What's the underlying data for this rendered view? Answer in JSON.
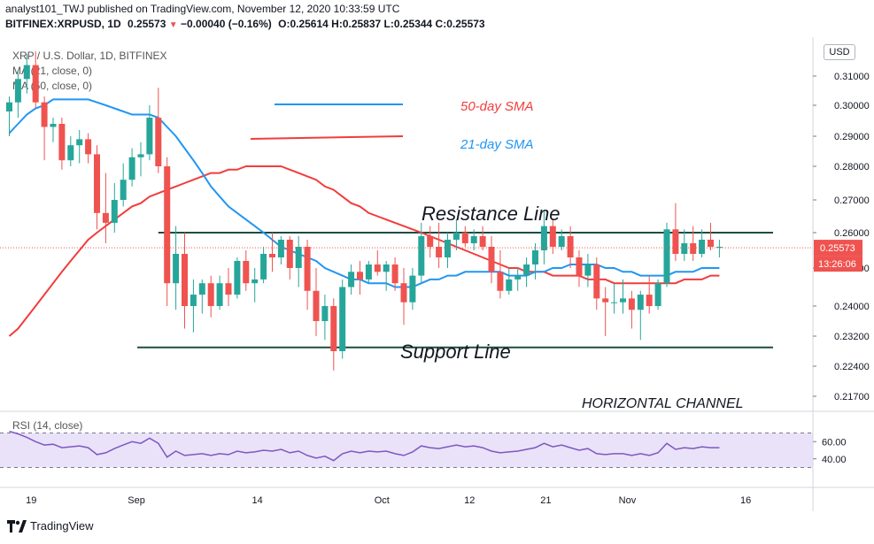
{
  "header": {
    "line1": "analyst101_TWJ published on TradingView.com, November 12, 2020 10:33:59 UTC",
    "symbol": "BITFINEX:XRPUSD, 1D",
    "price": "0.25573",
    "change": "−0.00040 (−0.16%)",
    "ohlc": "O:0.25614 H:0.25837 L:0.25344 C:0.25573"
  },
  "legend": {
    "title": "XRP / U.S. Dollar, 1D, BITFINEX",
    "ma21": "MA (21, close, 0)",
    "ma50": "MA (50, close, 0)"
  },
  "footer": {
    "brand": "TradingView"
  },
  "chart_data": [
    {
      "type": "candlestick",
      "title": "XRP / U.S. Dollar, 1D, BITFINEX",
      "currency_label": "USD",
      "y_tick_labels": [
        "0.31000",
        "0.30000",
        "0.29000",
        "0.28000",
        "0.27000",
        "0.26000",
        "0.25000",
        "0.24000",
        "0.23200",
        "0.22400",
        "0.21700"
      ],
      "x_tick_labels": [
        "19",
        "Sep",
        "14",
        "Oct",
        "12",
        "21",
        "Nov",
        "16"
      ],
      "last_price_label": "0.25573",
      "countdown_label": "13:26:06",
      "candles": [
        {
          "o": 0.298,
          "h": 0.303,
          "l": 0.29,
          "c": 0.301
        },
        {
          "o": 0.301,
          "h": 0.312,
          "l": 0.296,
          "c": 0.309
        },
        {
          "o": 0.309,
          "h": 0.318,
          "l": 0.304,
          "c": 0.314
        },
        {
          "o": 0.314,
          "h": 0.319,
          "l": 0.299,
          "c": 0.301
        },
        {
          "o": 0.301,
          "h": 0.303,
          "l": 0.282,
          "c": 0.293
        },
        {
          "o": 0.293,
          "h": 0.296,
          "l": 0.288,
          "c": 0.294
        },
        {
          "o": 0.294,
          "h": 0.296,
          "l": 0.279,
          "c": 0.282
        },
        {
          "o": 0.282,
          "h": 0.29,
          "l": 0.28,
          "c": 0.287
        },
        {
          "o": 0.287,
          "h": 0.292,
          "l": 0.281,
          "c": 0.289
        },
        {
          "o": 0.289,
          "h": 0.291,
          "l": 0.281,
          "c": 0.284
        },
        {
          "o": 0.284,
          "h": 0.287,
          "l": 0.261,
          "c": 0.266
        },
        {
          "o": 0.266,
          "h": 0.278,
          "l": 0.257,
          "c": 0.263
        },
        {
          "o": 0.263,
          "h": 0.275,
          "l": 0.26,
          "c": 0.27
        },
        {
          "o": 0.27,
          "h": 0.281,
          "l": 0.268,
          "c": 0.276
        },
        {
          "o": 0.276,
          "h": 0.286,
          "l": 0.274,
          "c": 0.283
        },
        {
          "o": 0.283,
          "h": 0.288,
          "l": 0.277,
          "c": 0.284
        },
        {
          "o": 0.284,
          "h": 0.3,
          "l": 0.282,
          "c": 0.296
        },
        {
          "o": 0.296,
          "h": 0.306,
          "l": 0.278,
          "c": 0.28
        },
        {
          "o": 0.28,
          "h": 0.283,
          "l": 0.24,
          "c": 0.246
        },
        {
          "o": 0.246,
          "h": 0.262,
          "l": 0.239,
          "c": 0.254
        },
        {
          "o": 0.254,
          "h": 0.26,
          "l": 0.234,
          "c": 0.24
        },
        {
          "o": 0.24,
          "h": 0.247,
          "l": 0.233,
          "c": 0.243
        },
        {
          "o": 0.243,
          "h": 0.247,
          "l": 0.238,
          "c": 0.246
        },
        {
          "o": 0.246,
          "h": 0.248,
          "l": 0.237,
          "c": 0.24
        },
        {
          "o": 0.24,
          "h": 0.248,
          "l": 0.239,
          "c": 0.246
        },
        {
          "o": 0.246,
          "h": 0.25,
          "l": 0.24,
          "c": 0.243
        },
        {
          "o": 0.243,
          "h": 0.253,
          "l": 0.242,
          "c": 0.252
        },
        {
          "o": 0.252,
          "h": 0.255,
          "l": 0.244,
          "c": 0.246
        },
        {
          "o": 0.246,
          "h": 0.25,
          "l": 0.241,
          "c": 0.247
        },
        {
          "o": 0.247,
          "h": 0.256,
          "l": 0.246,
          "c": 0.254
        },
        {
          "o": 0.254,
          "h": 0.26,
          "l": 0.249,
          "c": 0.253
        },
        {
          "o": 0.253,
          "h": 0.259,
          "l": 0.251,
          "c": 0.258
        },
        {
          "o": 0.258,
          "h": 0.259,
          "l": 0.247,
          "c": 0.25
        },
        {
          "o": 0.25,
          "h": 0.259,
          "l": 0.245,
          "c": 0.256
        },
        {
          "o": 0.256,
          "h": 0.258,
          "l": 0.239,
          "c": 0.244
        },
        {
          "o": 0.244,
          "h": 0.25,
          "l": 0.232,
          "c": 0.236
        },
        {
          "o": 0.236,
          "h": 0.243,
          "l": 0.231,
          "c": 0.24
        },
        {
          "o": 0.24,
          "h": 0.242,
          "l": 0.223,
          "c": 0.228
        },
        {
          "o": 0.228,
          "h": 0.247,
          "l": 0.226,
          "c": 0.245
        },
        {
          "o": 0.245,
          "h": 0.251,
          "l": 0.243,
          "c": 0.249
        },
        {
          "o": 0.249,
          "h": 0.252,
          "l": 0.243,
          "c": 0.247
        },
        {
          "o": 0.247,
          "h": 0.252,
          "l": 0.246,
          "c": 0.251
        },
        {
          "o": 0.251,
          "h": 0.255,
          "l": 0.248,
          "c": 0.249
        },
        {
          "o": 0.249,
          "h": 0.252,
          "l": 0.244,
          "c": 0.251
        },
        {
          "o": 0.251,
          "h": 0.253,
          "l": 0.244,
          "c": 0.246
        },
        {
          "o": 0.246,
          "h": 0.25,
          "l": 0.235,
          "c": 0.241
        },
        {
          "o": 0.241,
          "h": 0.25,
          "l": 0.239,
          "c": 0.248
        },
        {
          "o": 0.248,
          "h": 0.263,
          "l": 0.246,
          "c": 0.259
        },
        {
          "o": 0.259,
          "h": 0.262,
          "l": 0.253,
          "c": 0.256
        },
        {
          "o": 0.256,
          "h": 0.263,
          "l": 0.25,
          "c": 0.253
        },
        {
          "o": 0.253,
          "h": 0.26,
          "l": 0.25,
          "c": 0.258
        },
        {
          "o": 0.258,
          "h": 0.264,
          "l": 0.255,
          "c": 0.26
        },
        {
          "o": 0.26,
          "h": 0.262,
          "l": 0.256,
          "c": 0.257
        },
        {
          "o": 0.257,
          "h": 0.261,
          "l": 0.255,
          "c": 0.259
        },
        {
          "o": 0.259,
          "h": 0.262,
          "l": 0.255,
          "c": 0.256
        },
        {
          "o": 0.256,
          "h": 0.259,
          "l": 0.246,
          "c": 0.249
        },
        {
          "o": 0.249,
          "h": 0.255,
          "l": 0.242,
          "c": 0.244
        },
        {
          "o": 0.244,
          "h": 0.25,
          "l": 0.243,
          "c": 0.247
        },
        {
          "o": 0.247,
          "h": 0.25,
          "l": 0.244,
          "c": 0.248
        },
        {
          "o": 0.248,
          "h": 0.253,
          "l": 0.245,
          "c": 0.251
        },
        {
          "o": 0.251,
          "h": 0.257,
          "l": 0.247,
          "c": 0.255
        },
        {
          "o": 0.255,
          "h": 0.267,
          "l": 0.251,
          "c": 0.262
        },
        {
          "o": 0.262,
          "h": 0.264,
          "l": 0.254,
          "c": 0.256
        },
        {
          "o": 0.256,
          "h": 0.261,
          "l": 0.255,
          "c": 0.259
        },
        {
          "o": 0.259,
          "h": 0.262,
          "l": 0.25,
          "c": 0.253
        },
        {
          "o": 0.253,
          "h": 0.255,
          "l": 0.245,
          "c": 0.248
        },
        {
          "o": 0.248,
          "h": 0.254,
          "l": 0.245,
          "c": 0.251
        },
        {
          "o": 0.251,
          "h": 0.253,
          "l": 0.239,
          "c": 0.242
        },
        {
          "o": 0.242,
          "h": 0.245,
          "l": 0.232,
          "c": 0.241
        },
        {
          "o": 0.241,
          "h": 0.246,
          "l": 0.238,
          "c": 0.241
        },
        {
          "o": 0.241,
          "h": 0.247,
          "l": 0.238,
          "c": 0.242
        },
        {
          "o": 0.242,
          "h": 0.244,
          "l": 0.234,
          "c": 0.239
        },
        {
          "o": 0.239,
          "h": 0.244,
          "l": 0.231,
          "c": 0.243
        },
        {
          "o": 0.243,
          "h": 0.248,
          "l": 0.238,
          "c": 0.24
        },
        {
          "o": 0.24,
          "h": 0.247,
          "l": 0.239,
          "c": 0.246
        },
        {
          "o": 0.246,
          "h": 0.263,
          "l": 0.245,
          "c": 0.261
        },
        {
          "o": 0.261,
          "h": 0.269,
          "l": 0.252,
          "c": 0.254
        },
        {
          "o": 0.254,
          "h": 0.261,
          "l": 0.252,
          "c": 0.257
        },
        {
          "o": 0.257,
          "h": 0.262,
          "l": 0.252,
          "c": 0.254
        },
        {
          "o": 0.254,
          "h": 0.261,
          "l": 0.253,
          "c": 0.258
        },
        {
          "o": 0.258,
          "h": 0.263,
          "l": 0.255,
          "c": 0.256
        },
        {
          "o": 0.256,
          "h": 0.258,
          "l": 0.253,
          "c": 0.256
        }
      ],
      "ma21": [
        0.291,
        0.294,
        0.297,
        0.299,
        0.3,
        0.302,
        0.302,
        0.302,
        0.302,
        0.302,
        0.301,
        0.3,
        0.299,
        0.298,
        0.297,
        0.297,
        0.297,
        0.296,
        0.293,
        0.29,
        0.286,
        0.282,
        0.278,
        0.274,
        0.271,
        0.268,
        0.266,
        0.264,
        0.262,
        0.26,
        0.258,
        0.256,
        0.255,
        0.254,
        0.253,
        0.252,
        0.25,
        0.249,
        0.248,
        0.247,
        0.247,
        0.246,
        0.246,
        0.246,
        0.245,
        0.245,
        0.245,
        0.246,
        0.247,
        0.247,
        0.248,
        0.248,
        0.249,
        0.249,
        0.249,
        0.249,
        0.249,
        0.248,
        0.248,
        0.248,
        0.249,
        0.249,
        0.25,
        0.25,
        0.251,
        0.251,
        0.251,
        0.251,
        0.25,
        0.25,
        0.249,
        0.249,
        0.248,
        0.248,
        0.248,
        0.248,
        0.249,
        0.249,
        0.249,
        0.25,
        0.25,
        0.25
      ],
      "ma50": [
        0.232,
        0.234,
        0.237,
        0.24,
        0.243,
        0.246,
        0.249,
        0.252,
        0.255,
        0.258,
        0.26,
        0.262,
        0.264,
        0.266,
        0.268,
        0.269,
        0.271,
        0.272,
        0.273,
        0.274,
        0.275,
        0.276,
        0.277,
        0.278,
        0.278,
        0.279,
        0.279,
        0.28,
        0.28,
        0.28,
        0.28,
        0.28,
        0.279,
        0.278,
        0.277,
        0.276,
        0.274,
        0.273,
        0.271,
        0.269,
        0.268,
        0.266,
        0.265,
        0.264,
        0.263,
        0.262,
        0.261,
        0.26,
        0.259,
        0.258,
        0.257,
        0.256,
        0.255,
        0.254,
        0.253,
        0.252,
        0.251,
        0.25,
        0.25,
        0.249,
        0.249,
        0.249,
        0.248,
        0.248,
        0.248,
        0.248,
        0.247,
        0.247,
        0.247,
        0.246,
        0.246,
        0.246,
        0.246,
        0.246,
        0.246,
        0.246,
        0.246,
        0.247,
        0.247,
        0.247,
        0.248,
        0.248
      ],
      "annotations": {
        "resistance_level": 0.26,
        "resistance_label": "Resistance Line",
        "support_level": 0.229,
        "support_label": "Support Line",
        "channel_label": "HORIZONTAL CHANNEL",
        "legend_50_label": "50-day SMA",
        "legend_21_label": "21-day SMA"
      },
      "colors": {
        "up": "#26a69a",
        "down": "#ef5350",
        "ma21": "#2196f3",
        "ma50": "#f23c3c",
        "lines": "#1e4d40"
      }
    },
    {
      "type": "line",
      "title": "RSI (14, close)",
      "y_tick_labels": [
        "60.00",
        "40.00"
      ],
      "bands": [
        30,
        70
      ],
      "values": [
        72,
        69,
        65,
        60,
        56,
        57,
        53,
        54,
        55,
        53,
        45,
        47,
        52,
        56,
        60,
        58,
        64,
        58,
        42,
        49,
        44,
        45,
        46,
        44,
        46,
        45,
        49,
        47,
        48,
        50,
        49,
        51,
        47,
        49,
        44,
        41,
        43,
        38,
        46,
        49,
        47,
        49,
        48,
        49,
        46,
        44,
        48,
        55,
        53,
        52,
        54,
        56,
        54,
        55,
        53,
        49,
        47,
        48,
        49,
        51,
        53,
        58,
        54,
        56,
        53,
        50,
        52,
        46,
        45,
        46,
        46,
        44,
        46,
        44,
        47,
        58,
        51,
        53,
        52,
        54,
        53,
        53
      ],
      "colors": {
        "line": "#7e57c2",
        "band": "#e1d5f5"
      }
    }
  ]
}
